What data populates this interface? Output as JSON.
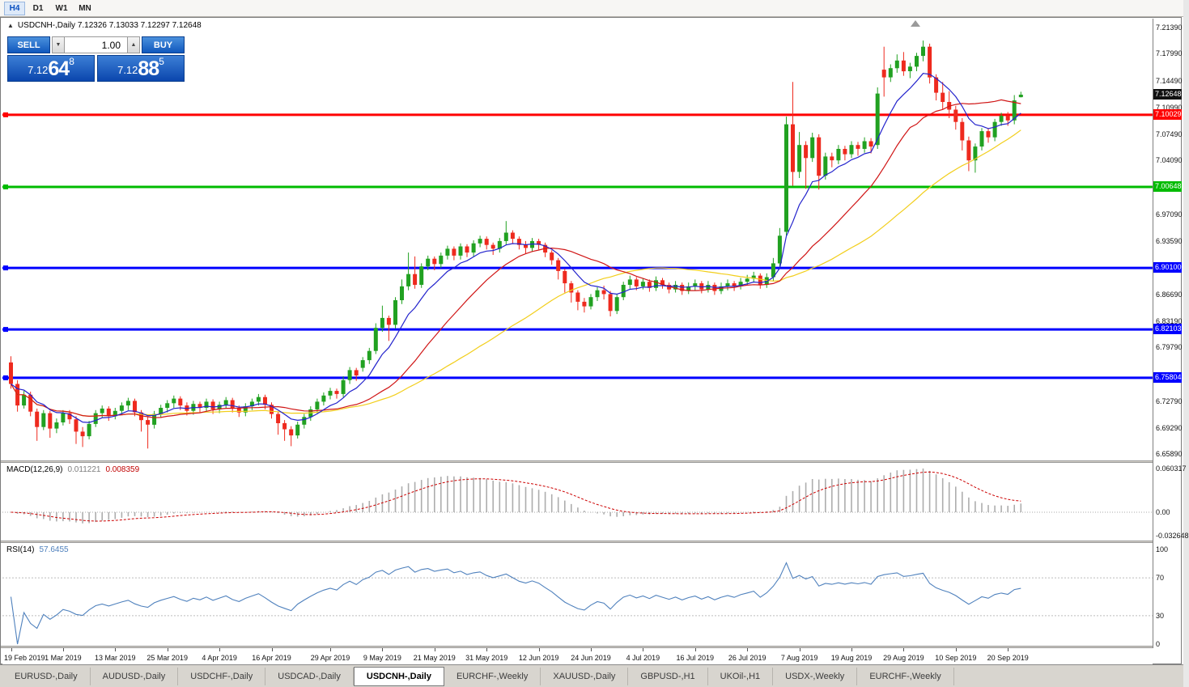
{
  "toolbar": {
    "timeframes": [
      {
        "label": "H4",
        "highlighted": true
      },
      {
        "label": "D1",
        "highlighted": false
      },
      {
        "label": "W1",
        "highlighted": false
      },
      {
        "label": "MN",
        "highlighted": false
      }
    ]
  },
  "chart": {
    "collapse_icon": "▲",
    "title_text": "USDCNH-,Daily  7.12326 7.13033 7.12297 7.12648"
  },
  "trade_panel": {
    "sell_label": "SELL",
    "buy_label": "BUY",
    "volume": "1.00",
    "down_arrow": "▼",
    "up_arrow": "▲",
    "sell_price": {
      "base": "7.12",
      "pips": "64",
      "point": "8"
    },
    "buy_price": {
      "base": "7.12",
      "pips": "88",
      "point": "5"
    }
  },
  "price_scale": {
    "current_price": "7.12648",
    "current_badge_color": "#111111",
    "labels": [
      "7.21390",
      "7.17990",
      "7.14490",
      "7.10990",
      "7.07490",
      "7.04090",
      "6.97090",
      "6.93590",
      "6.86690",
      "6.83190",
      "6.79790",
      "6.72790",
      "6.69290",
      "6.65890"
    ]
  },
  "hlines": [
    {
      "price": 7.10029,
      "label": "7.10029",
      "color": "#FF0000",
      "width": 3
    },
    {
      "price": 7.00648,
      "label": "7.00648",
      "color": "#00BB00",
      "width": 3
    },
    {
      "price": 6.901,
      "label": "6.90100",
      "color": "#0000FF",
      "width": 3
    },
    {
      "price": 6.82103,
      "label": "6.82103",
      "color": "#0000FF",
      "width": 3
    },
    {
      "price": 6.75804,
      "label": "6.75804",
      "color": "#0000FF",
      "width": 3
    }
  ],
  "chart_data": {
    "type": "candlestick",
    "symbol": "USDCNH-",
    "timeframe": "Daily",
    "up_color": "#21A121",
    "down_color": "#EE2A1E",
    "price_axis": {
      "min": 6.6505,
      "max": 7.2255
    },
    "x_labels": [
      {
        "text": "19 Feb 2019",
        "i": 0
      },
      {
        "text": "1 Mar 2019",
        "i": 8
      },
      {
        "text": "13 Mar 2019",
        "i": 16
      },
      {
        "text": "25 Mar 2019",
        "i": 24
      },
      {
        "text": "4 Apr 2019",
        "i": 32
      },
      {
        "text": "16 Apr 2019",
        "i": 40
      },
      {
        "text": "29 Apr 2019",
        "i": 49
      },
      {
        "text": "9 May 2019",
        "i": 57
      },
      {
        "text": "21 May 2019",
        "i": 65
      },
      {
        "text": "31 May 2019",
        "i": 73
      },
      {
        "text": "12 Jun 2019",
        "i": 81
      },
      {
        "text": "24 Jun 2019",
        "i": 89
      },
      {
        "text": "4 Jul 2019",
        "i": 97
      },
      {
        "text": "16 Jul 2019",
        "i": 105
      },
      {
        "text": "26 Jul 2019",
        "i": 113
      },
      {
        "text": "7 Aug 2019",
        "i": 121
      },
      {
        "text": "19 Aug 2019",
        "i": 129
      },
      {
        "text": "29 Aug 2019",
        "i": 137
      },
      {
        "text": "10 Sep 2019",
        "i": 145
      },
      {
        "text": "20 Sep 2019",
        "i": 153
      }
    ],
    "candles": [
      [
        6.778,
        6.786,
        6.744,
        6.75
      ],
      [
        6.75,
        6.755,
        6.714,
        6.722
      ],
      [
        6.722,
        6.741,
        6.718,
        6.736
      ],
      [
        6.736,
        6.74,
        6.708,
        6.714
      ],
      [
        6.714,
        6.718,
        6.676,
        6.694
      ],
      [
        6.694,
        6.716,
        6.69,
        6.712
      ],
      [
        6.712,
        6.715,
        6.68,
        6.692
      ],
      [
        6.692,
        6.705,
        6.686,
        6.7
      ],
      [
        6.7,
        6.716,
        6.696,
        6.712
      ],
      [
        6.712,
        6.716,
        6.698,
        6.704
      ],
      [
        6.704,
        6.708,
        6.672,
        6.688
      ],
      [
        6.688,
        6.694,
        6.668,
        6.682
      ],
      [
        6.682,
        6.702,
        6.678,
        6.698
      ],
      [
        6.698,
        6.716,
        6.694,
        6.712
      ],
      [
        6.712,
        6.722,
        6.706,
        6.718
      ],
      [
        6.718,
        6.721,
        6.702,
        6.708
      ],
      [
        6.708,
        6.719,
        6.704,
        6.715
      ],
      [
        6.715,
        6.726,
        6.71,
        6.722
      ],
      [
        6.722,
        6.732,
        6.716,
        6.728
      ],
      [
        6.728,
        6.731,
        6.708,
        6.713
      ],
      [
        6.713,
        6.716,
        6.688,
        6.703
      ],
      [
        6.703,
        6.708,
        6.666,
        6.697
      ],
      [
        6.697,
        6.715,
        6.692,
        6.711
      ],
      [
        6.711,
        6.723,
        6.706,
        6.719
      ],
      [
        6.719,
        6.729,
        6.713,
        6.725
      ],
      [
        6.725,
        6.735,
        6.719,
        6.731
      ],
      [
        6.731,
        6.734,
        6.716,
        6.722
      ],
      [
        6.722,
        6.726,
        6.709,
        6.715
      ],
      [
        6.715,
        6.728,
        6.71,
        6.724
      ],
      [
        6.724,
        6.727,
        6.713,
        6.719
      ],
      [
        6.719,
        6.731,
        6.714,
        6.727
      ],
      [
        6.727,
        6.73,
        6.711,
        6.717
      ],
      [
        6.717,
        6.727,
        6.712,
        6.723
      ],
      [
        6.723,
        6.733,
        6.718,
        6.729
      ],
      [
        6.729,
        6.732,
        6.713,
        6.719
      ],
      [
        6.719,
        6.722,
        6.707,
        6.713
      ],
      [
        6.713,
        6.725,
        6.708,
        6.721
      ],
      [
        6.721,
        6.731,
        6.716,
        6.727
      ],
      [
        6.727,
        6.737,
        6.722,
        6.733
      ],
      [
        6.733,
        6.736,
        6.717,
        6.723
      ],
      [
        6.723,
        6.726,
        6.705,
        6.711
      ],
      [
        6.711,
        6.714,
        6.684,
        6.699
      ],
      [
        6.699,
        6.703,
        6.676,
        6.691
      ],
      [
        6.691,
        6.695,
        6.669,
        6.683
      ],
      [
        6.683,
        6.701,
        6.679,
        6.697
      ],
      [
        6.697,
        6.711,
        6.692,
        6.707
      ],
      [
        6.707,
        6.721,
        6.702,
        6.717
      ],
      [
        6.717,
        6.731,
        6.712,
        6.727
      ],
      [
        6.727,
        6.739,
        6.722,
        6.735
      ],
      [
        6.735,
        6.745,
        6.73,
        6.741
      ],
      [
        6.741,
        6.744,
        6.731,
        6.737
      ],
      [
        6.737,
        6.76,
        6.733,
        6.755
      ],
      [
        6.755,
        6.772,
        6.75,
        6.768
      ],
      [
        6.768,
        6.771,
        6.754,
        6.761
      ],
      [
        6.771,
        6.785,
        6.766,
        6.781
      ],
      [
        6.781,
        6.797,
        6.776,
        6.793
      ],
      [
        6.793,
        6.829,
        6.789,
        6.823
      ],
      [
        6.823,
        6.852,
        6.818,
        6.836
      ],
      [
        6.836,
        6.839,
        6.806,
        6.827
      ],
      [
        6.827,
        6.863,
        6.822,
        6.859
      ],
      [
        6.859,
        6.886,
        6.854,
        6.877
      ],
      [
        6.877,
        6.921,
        6.872,
        6.893
      ],
      [
        6.893,
        6.916,
        6.874,
        6.879
      ],
      [
        6.879,
        6.907,
        6.875,
        6.903
      ],
      [
        6.903,
        6.917,
        6.898,
        6.913
      ],
      [
        6.913,
        6.916,
        6.898,
        6.906
      ],
      [
        6.906,
        6.921,
        6.901,
        6.917
      ],
      [
        6.917,
        6.93,
        6.912,
        6.926
      ],
      [
        6.926,
        6.929,
        6.911,
        6.917
      ],
      [
        6.917,
        6.933,
        6.912,
        6.929
      ],
      [
        6.929,
        6.932,
        6.915,
        6.921
      ],
      [
        6.921,
        6.937,
        6.916,
        6.933
      ],
      [
        6.933,
        6.943,
        6.928,
        6.939
      ],
      [
        6.939,
        6.942,
        6.925,
        6.931
      ],
      [
        6.931,
        6.934,
        6.918,
        6.926
      ],
      [
        6.926,
        6.94,
        6.921,
        6.936
      ],
      [
        6.936,
        6.962,
        6.931,
        6.947
      ],
      [
        6.947,
        6.95,
        6.933,
        6.939
      ],
      [
        6.939,
        6.942,
        6.925,
        6.931
      ],
      [
        6.931,
        6.936,
        6.92,
        6.927
      ],
      [
        6.927,
        6.94,
        6.922,
        6.936
      ],
      [
        6.936,
        6.939,
        6.925,
        6.931
      ],
      [
        6.931,
        6.934,
        6.915,
        6.921
      ],
      [
        6.921,
        6.924,
        6.905,
        6.911
      ],
      [
        6.911,
        6.914,
        6.886,
        6.897
      ],
      [
        6.897,
        6.9,
        6.869,
        6.881
      ],
      [
        6.881,
        6.884,
        6.856,
        6.869
      ],
      [
        6.869,
        6.872,
        6.846,
        6.857
      ],
      [
        6.857,
        6.862,
        6.843,
        6.851
      ],
      [
        6.851,
        6.867,
        6.847,
        6.863
      ],
      [
        6.863,
        6.876,
        6.858,
        6.872
      ],
      [
        6.872,
        6.878,
        6.86,
        6.867
      ],
      [
        6.867,
        6.871,
        6.838,
        6.845
      ],
      [
        6.845,
        6.867,
        6.841,
        6.863
      ],
      [
        6.863,
        6.883,
        6.859,
        6.879
      ],
      [
        6.879,
        6.891,
        6.874,
        6.886
      ],
      [
        6.886,
        6.889,
        6.872,
        6.877
      ],
      [
        6.877,
        6.888,
        6.873,
        6.883
      ],
      [
        6.883,
        6.886,
        6.87,
        6.875
      ],
      [
        6.875,
        6.89,
        6.871,
        6.885
      ],
      [
        6.885,
        6.888,
        6.874,
        6.879
      ],
      [
        6.879,
        6.882,
        6.868,
        6.873
      ],
      [
        6.873,
        6.884,
        6.869,
        6.879
      ],
      [
        6.879,
        6.882,
        6.866,
        6.871
      ],
      [
        6.871,
        6.882,
        6.867,
        6.877
      ],
      [
        6.877,
        6.886,
        6.872,
        6.881
      ],
      [
        6.881,
        6.884,
        6.868,
        6.873
      ],
      [
        6.873,
        6.884,
        6.869,
        6.879
      ],
      [
        6.879,
        6.882,
        6.866,
        6.871
      ],
      [
        6.871,
        6.882,
        6.867,
        6.877
      ],
      [
        6.877,
        6.886,
        6.872,
        6.881
      ],
      [
        6.881,
        6.884,
        6.871,
        6.877
      ],
      [
        6.877,
        6.888,
        6.873,
        6.883
      ],
      [
        6.883,
        6.892,
        6.878,
        6.887
      ],
      [
        6.887,
        6.896,
        6.882,
        6.891
      ],
      [
        6.891,
        6.894,
        6.874,
        6.879
      ],
      [
        6.879,
        6.894,
        6.875,
        6.889
      ],
      [
        6.889,
        6.914,
        6.884,
        6.907
      ],
      [
        6.907,
        6.953,
        6.902,
        6.943
      ],
      [
        6.948,
        7.098,
        6.943,
        7.088
      ],
      [
        7.088,
        7.143,
        7.008,
        7.026
      ],
      [
        7.026,
        7.078,
        7.018,
        7.061
      ],
      [
        7.061,
        7.066,
        7.004,
        7.044
      ],
      [
        7.044,
        7.077,
        7.039,
        7.071
      ],
      [
        7.071,
        7.075,
        7.003,
        7.021
      ],
      [
        7.021,
        7.051,
        7.016,
        7.046
      ],
      [
        7.046,
        7.051,
        7.032,
        7.041
      ],
      [
        7.041,
        7.061,
        7.036,
        7.056
      ],
      [
        7.056,
        7.06,
        7.041,
        7.049
      ],
      [
        7.049,
        7.066,
        7.044,
        7.061
      ],
      [
        7.061,
        7.065,
        7.047,
        7.056
      ],
      [
        7.056,
        7.071,
        7.051,
        7.066
      ],
      [
        7.066,
        7.07,
        7.05,
        7.059
      ],
      [
        7.061,
        7.136,
        7.056,
        7.128
      ],
      [
        7.159,
        7.189,
        7.124,
        7.149
      ],
      [
        7.149,
        7.166,
        7.143,
        7.161
      ],
      [
        7.161,
        7.179,
        7.155,
        7.171
      ],
      [
        7.171,
        7.182,
        7.151,
        7.157
      ],
      [
        7.157,
        7.168,
        7.148,
        7.163
      ],
      [
        7.163,
        7.181,
        7.157,
        7.177
      ],
      [
        7.177,
        7.197,
        7.17,
        7.189
      ],
      [
        7.189,
        7.193,
        7.141,
        7.149
      ],
      [
        7.149,
        7.153,
        7.119,
        7.129
      ],
      [
        7.129,
        7.143,
        7.107,
        7.117
      ],
      [
        7.117,
        7.131,
        7.096,
        7.107
      ],
      [
        7.107,
        7.112,
        7.081,
        7.091
      ],
      [
        7.091,
        7.096,
        7.054,
        7.067
      ],
      [
        7.067,
        7.072,
        7.027,
        7.041
      ],
      [
        7.041,
        7.063,
        7.025,
        7.059
      ],
      [
        7.059,
        7.083,
        7.054,
        7.079
      ],
      [
        7.079,
        7.083,
        7.064,
        7.071
      ],
      [
        7.071,
        7.095,
        7.066,
        7.091
      ],
      [
        7.091,
        7.103,
        7.086,
        7.099
      ],
      [
        7.099,
        7.104,
        7.086,
        7.093
      ],
      [
        7.093,
        7.126,
        7.088,
        7.119
      ],
      [
        7.12326,
        7.13033,
        7.12297,
        7.12648
      ]
    ],
    "moving_averages": [
      {
        "name": "fast",
        "method": "ema",
        "period": 8,
        "color": "#2222CC"
      },
      {
        "name": "medium",
        "method": "sma",
        "period": 20,
        "color": "#D01616"
      },
      {
        "name": "slow",
        "method": "sma",
        "period": 40,
        "color": "#F2CE1B"
      }
    ],
    "macd": {
      "label": "MACD(12,26,9)",
      "value_main": "0.011221",
      "value_signal": "0.008359",
      "fast": 12,
      "slow": 26,
      "signal": 9,
      "hist_color": "#ADADAD",
      "signal_color": "#CC0000",
      "scale_labels": [
        "0.060317",
        "0.00",
        "-0.032648"
      ]
    },
    "rsi": {
      "label": "RSI(14)",
      "value": "57.6455",
      "period": 14,
      "color": "#4F81BD",
      "levels": [
        70,
        30
      ],
      "scale_labels": [
        "100",
        "70",
        "30",
        "0"
      ]
    }
  },
  "tabs": {
    "items": [
      {
        "label": "EURUSD-,Daily",
        "active": false
      },
      {
        "label": "AUDUSD-,Daily",
        "active": false
      },
      {
        "label": "USDCHF-,Daily",
        "active": false
      },
      {
        "label": "USDCAD-,Daily",
        "active": false
      },
      {
        "label": "USDCNH-,Daily",
        "active": true
      },
      {
        "label": "EURCHF-,Weekly",
        "active": false
      },
      {
        "label": "XAUUSD-,Daily",
        "active": false
      },
      {
        "label": "GBPUSD-,H1",
        "active": false
      },
      {
        "label": "UKOil-,H1",
        "active": false
      },
      {
        "label": "USDX-,Weekly",
        "active": false
      },
      {
        "label": "EURCHF-,Weekly",
        "active": false
      }
    ]
  }
}
